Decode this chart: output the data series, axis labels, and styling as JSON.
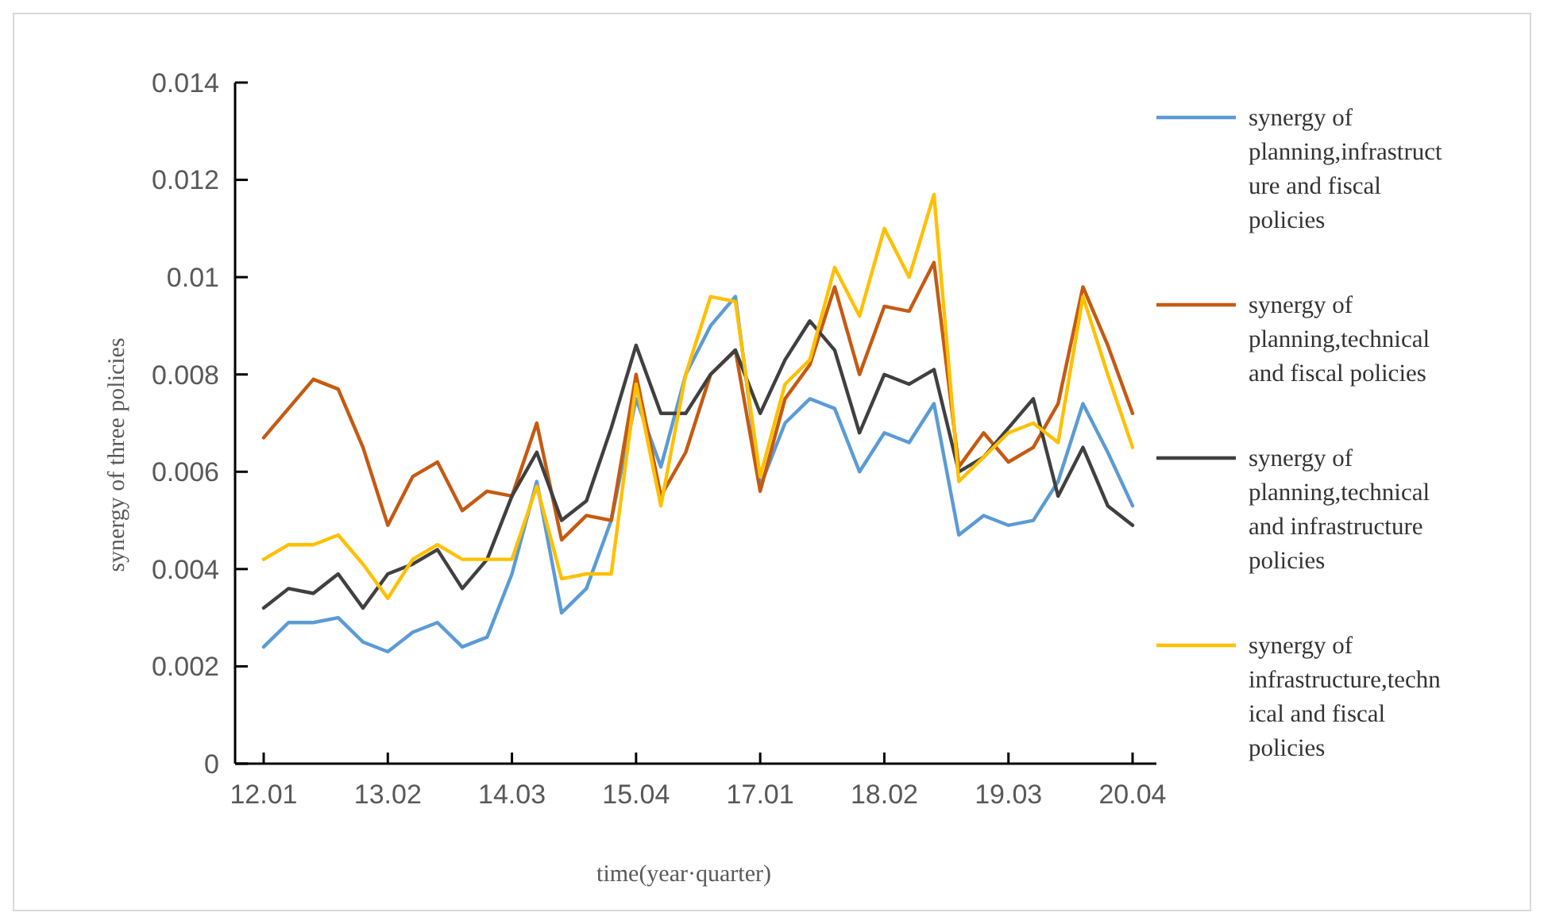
{
  "chart_data": {
    "type": "line",
    "xlabel": "time(year·quarter)",
    "ylabel": "synergy of three policies",
    "categories": [
      "12.01",
      null,
      null,
      null,
      null,
      "13.02",
      null,
      null,
      null,
      null,
      "14.03",
      null,
      null,
      null,
      null,
      "15.04",
      null,
      null,
      null,
      null,
      "17.01",
      null,
      null,
      null,
      null,
      "18.02",
      null,
      null,
      null,
      null,
      "19.03",
      null,
      null,
      null,
      null,
      "20.04"
    ],
    "ylim": [
      0,
      0.014
    ],
    "yticks": [
      0,
      0.002,
      0.004,
      0.006,
      0.008,
      0.01,
      0.012,
      0.014
    ],
    "grid": false,
    "legend": "right",
    "line_style": "solid",
    "marker": "none",
    "series": [
      {
        "name": "synergy of planning,infrastructure and fiscal policies",
        "color": "#5b9bd5",
        "values": [
          0.0024,
          0.0029,
          0.0029,
          0.003,
          0.0025,
          0.0023,
          0.0027,
          0.0029,
          0.0024,
          0.0026,
          0.0039,
          0.0058,
          0.0031,
          0.0036,
          0.005,
          0.0075,
          0.0061,
          0.008,
          0.009,
          0.0096,
          0.0057,
          0.007,
          0.0075,
          0.0073,
          0.006,
          0.0068,
          0.0066,
          0.0074,
          0.0047,
          0.0051,
          0.0049,
          0.005,
          0.0058,
          0.0074,
          0.0064,
          0.0053
        ]
      },
      {
        "name": "synergy of planning,technical and fiscal policies",
        "color": "#c55a11",
        "values": [
          0.0067,
          0.0073,
          0.0079,
          0.0077,
          0.0065,
          0.0049,
          0.0059,
          0.0062,
          0.0052,
          0.0056,
          0.0055,
          0.007,
          0.0046,
          0.0051,
          0.005,
          0.008,
          0.0055,
          0.0064,
          0.008,
          0.0085,
          0.0056,
          0.0075,
          0.0082,
          0.0098,
          0.008,
          0.0094,
          0.0093,
          0.0103,
          0.0061,
          0.0068,
          0.0062,
          0.0065,
          0.0074,
          0.0098,
          0.0086,
          0.0072
        ]
      },
      {
        "name": "synergy of planning,technical and infrastructure policies",
        "color": "#404040",
        "values": [
          0.0032,
          0.0036,
          0.0035,
          0.0039,
          0.0032,
          0.0039,
          0.0041,
          0.0044,
          0.0036,
          0.0042,
          0.0055,
          0.0064,
          0.005,
          0.0054,
          0.0069,
          0.0086,
          0.0072,
          0.0072,
          0.008,
          0.0085,
          0.0072,
          0.0083,
          0.0091,
          0.0085,
          0.0068,
          0.008,
          0.0078,
          0.0081,
          0.006,
          0.0063,
          0.0069,
          0.0075,
          0.0055,
          0.0065,
          0.0053,
          0.0049
        ]
      },
      {
        "name": "synergy of infrastructure,technical and fiscal policies",
        "color": "#ffc000",
        "values": [
          0.0042,
          0.0045,
          0.0045,
          0.0047,
          0.0041,
          0.0034,
          0.0042,
          0.0045,
          0.0042,
          0.0042,
          0.0042,
          0.0057,
          0.0038,
          0.0039,
          0.0039,
          0.0078,
          0.0053,
          0.008,
          0.0096,
          0.0095,
          0.0059,
          0.0078,
          0.0083,
          0.0102,
          0.0092,
          0.011,
          0.01,
          0.0117,
          0.0058,
          0.0063,
          0.0068,
          0.007,
          0.0066,
          0.0096,
          0.008,
          0.0065
        ]
      }
    ]
  }
}
